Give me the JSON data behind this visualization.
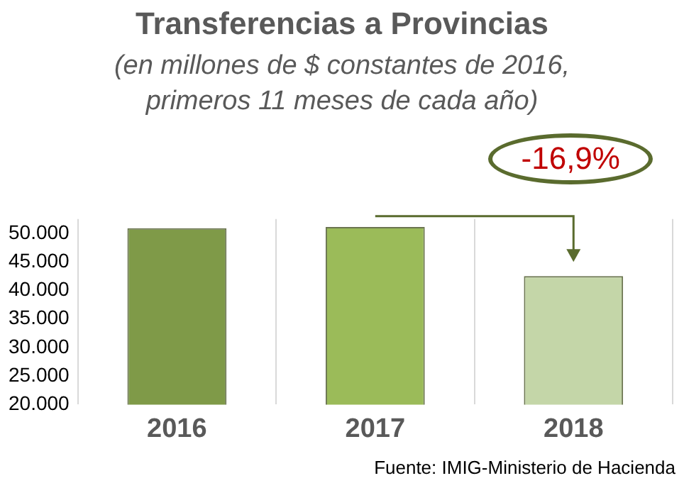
{
  "chart_data": {
    "type": "bar",
    "title": "Transferencias a Provincias",
    "subtitle": "(en millones de $ constantes de 2016,\nprimeros 11 meses de cada año)",
    "categories": [
      "2016",
      "2017",
      "2018"
    ],
    "values": [
      50900,
      51100,
      42500
    ],
    "colors": [
      "#7f9a48",
      "#9bbb59",
      "#c4d6a8"
    ],
    "ylim": [
      20000,
      52500
    ],
    "yticks": [
      {
        "value": 20000,
        "label": "20.000"
      },
      {
        "value": 25000,
        "label": "25.000"
      },
      {
        "value": 30000,
        "label": "30.000"
      },
      {
        "value": 35000,
        "label": "35.000"
      },
      {
        "value": 40000,
        "label": "40.000"
      },
      {
        "value": 45000,
        "label": "45.000"
      },
      {
        "value": 50000,
        "label": "50.000"
      }
    ],
    "grid": "x",
    "annotations": [
      "-16,9%",
      "Fuente: IMIG-Ministerio de Hacienda"
    ]
  }
}
